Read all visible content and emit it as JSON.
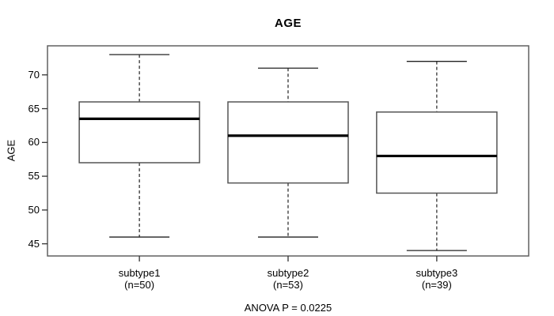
{
  "chart_data": {
    "type": "boxplot",
    "title": "AGE",
    "ylabel": "AGE",
    "xlabel": "",
    "annotation": "ANOVA P = 0.0225",
    "grid": false,
    "legend": false,
    "y_ticks": [
      45,
      50,
      55,
      60,
      65,
      70
    ],
    "ylim": [
      43.2,
      74.3
    ],
    "categories": [
      "subtype1",
      "subtype2",
      "subtype3"
    ],
    "category_sublabels": [
      "(n=50)",
      "(n=53)",
      "(n=39)"
    ],
    "series": [
      {
        "name": "subtype1",
        "n": 50,
        "whisker_low": 46,
        "q1": 57,
        "median": 63.5,
        "q3": 66,
        "whisker_high": 73,
        "outliers": []
      },
      {
        "name": "subtype2",
        "n": 53,
        "whisker_low": 46,
        "q1": 54,
        "median": 61,
        "q3": 66,
        "whisker_high": 71,
        "outliers": []
      },
      {
        "name": "subtype3",
        "n": 39,
        "whisker_low": 44,
        "q1": 52.5,
        "median": 58,
        "q3": 64.5,
        "whisker_high": 72,
        "outliers": []
      }
    ],
    "colors": {
      "box_fill": "#ffffff",
      "box_stroke": "#555555",
      "median_stroke": "#000000",
      "whisker_stroke": "#222222",
      "frame_stroke": "#606060",
      "text": "#000000"
    }
  }
}
